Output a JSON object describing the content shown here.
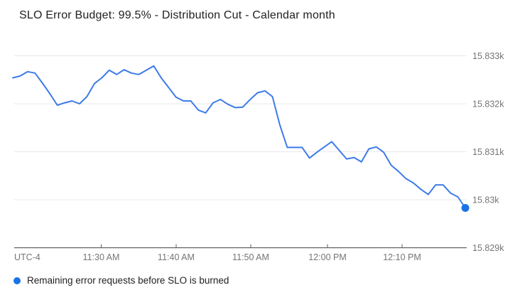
{
  "header": {
    "title": "SLO Error Budget: 99.5% - Distribution Cut - Calendar month"
  },
  "legend": {
    "items": [
      {
        "label": "Remaining error requests before SLO is burned",
        "color": "#1a73e8"
      }
    ]
  },
  "colors": {
    "line": "#3e7be8",
    "end_dot": "#1a73e8",
    "grid": "#e9e9e9",
    "axis": "#616161",
    "tick_label": "#757575",
    "title": "#212121"
  },
  "chart_data": {
    "type": "line",
    "title": "SLO Error Budget: 99.5% - Distribution Cut - Calendar month",
    "xlabel": "",
    "ylabel": "",
    "timezone_label": "UTC-4",
    "x_tick_labels": [
      "11:30 AM",
      "11:40 AM",
      "11:50 AM",
      "12:00 PM",
      "12:10 PM"
    ],
    "y_tick_labels": [
      "15.833k",
      "15.832k",
      "15.831k",
      "15.83k",
      "15.829k"
    ],
    "y_tick_values": [
      15833,
      15832,
      15831,
      15830,
      15829
    ],
    "ylim": [
      15829,
      15833.27
    ],
    "grid": "horizontal",
    "legend_position": "bottom",
    "end_point_marker": true,
    "series": [
      {
        "name": "Remaining error requests before SLO is burned",
        "x": [
          "11:18 AM",
          "11:19 AM",
          "11:20 AM",
          "11:21 AM",
          "11:22 AM",
          "11:23 AM",
          "11:24 AM",
          "11:25 AM",
          "11:26 AM",
          "11:27 AM",
          "11:28 AM",
          "11:29 AM",
          "11:30 AM",
          "11:31 AM",
          "11:32 AM",
          "11:33 AM",
          "11:34 AM",
          "11:35 AM",
          "11:36 AM",
          "11:37 AM",
          "11:38 AM",
          "11:39 AM",
          "11:40 AM",
          "11:41 AM",
          "11:42 AM",
          "11:43 AM",
          "11:44 AM",
          "11:45 AM",
          "11:46 AM",
          "11:47 AM",
          "11:48 AM",
          "11:49 AM",
          "11:50 AM",
          "11:51 AM",
          "11:52 AM",
          "11:53 AM",
          "11:54 AM",
          "11:55 AM",
          "11:56 AM",
          "11:57 AM",
          "11:58 AM",
          "11:59 AM",
          "12:00 PM",
          "12:01 PM",
          "12:02 PM",
          "12:03 PM",
          "12:04 PM",
          "12:05 PM",
          "12:06 PM",
          "12:07 PM",
          "12:08 PM",
          "12:09 PM",
          "12:10 PM",
          "12:11 PM",
          "12:12 PM",
          "12:13 PM",
          "12:14 PM",
          "12:15 PM",
          "12:16 PM",
          "12:17 PM",
          "12:18 PM",
          "12:19 PM"
        ],
        "values": [
          15832.54,
          15832.58,
          15832.67,
          15832.64,
          15832.43,
          15832.21,
          15831.97,
          15832.02,
          15832.06,
          15832.0,
          15832.15,
          15832.42,
          15832.54,
          15832.7,
          15832.61,
          15832.71,
          15832.64,
          15832.61,
          15832.7,
          15832.79,
          15832.54,
          15832.34,
          15832.14,
          15832.06,
          15832.06,
          15831.87,
          15831.81,
          15832.02,
          15832.09,
          15831.99,
          15831.92,
          15831.93,
          15832.09,
          15832.23,
          15832.27,
          15832.15,
          15831.56,
          15831.09,
          15831.09,
          15831.09,
          15830.87,
          15830.99,
          15831.1,
          15831.21,
          15831.03,
          15830.85,
          15830.88,
          15830.79,
          15831.06,
          15831.1,
          15830.99,
          15830.72,
          15830.59,
          15830.44,
          15830.35,
          15830.22,
          15830.11,
          15830.31,
          15830.31,
          15830.14,
          15830.06,
          15829.83
        ]
      }
    ]
  }
}
